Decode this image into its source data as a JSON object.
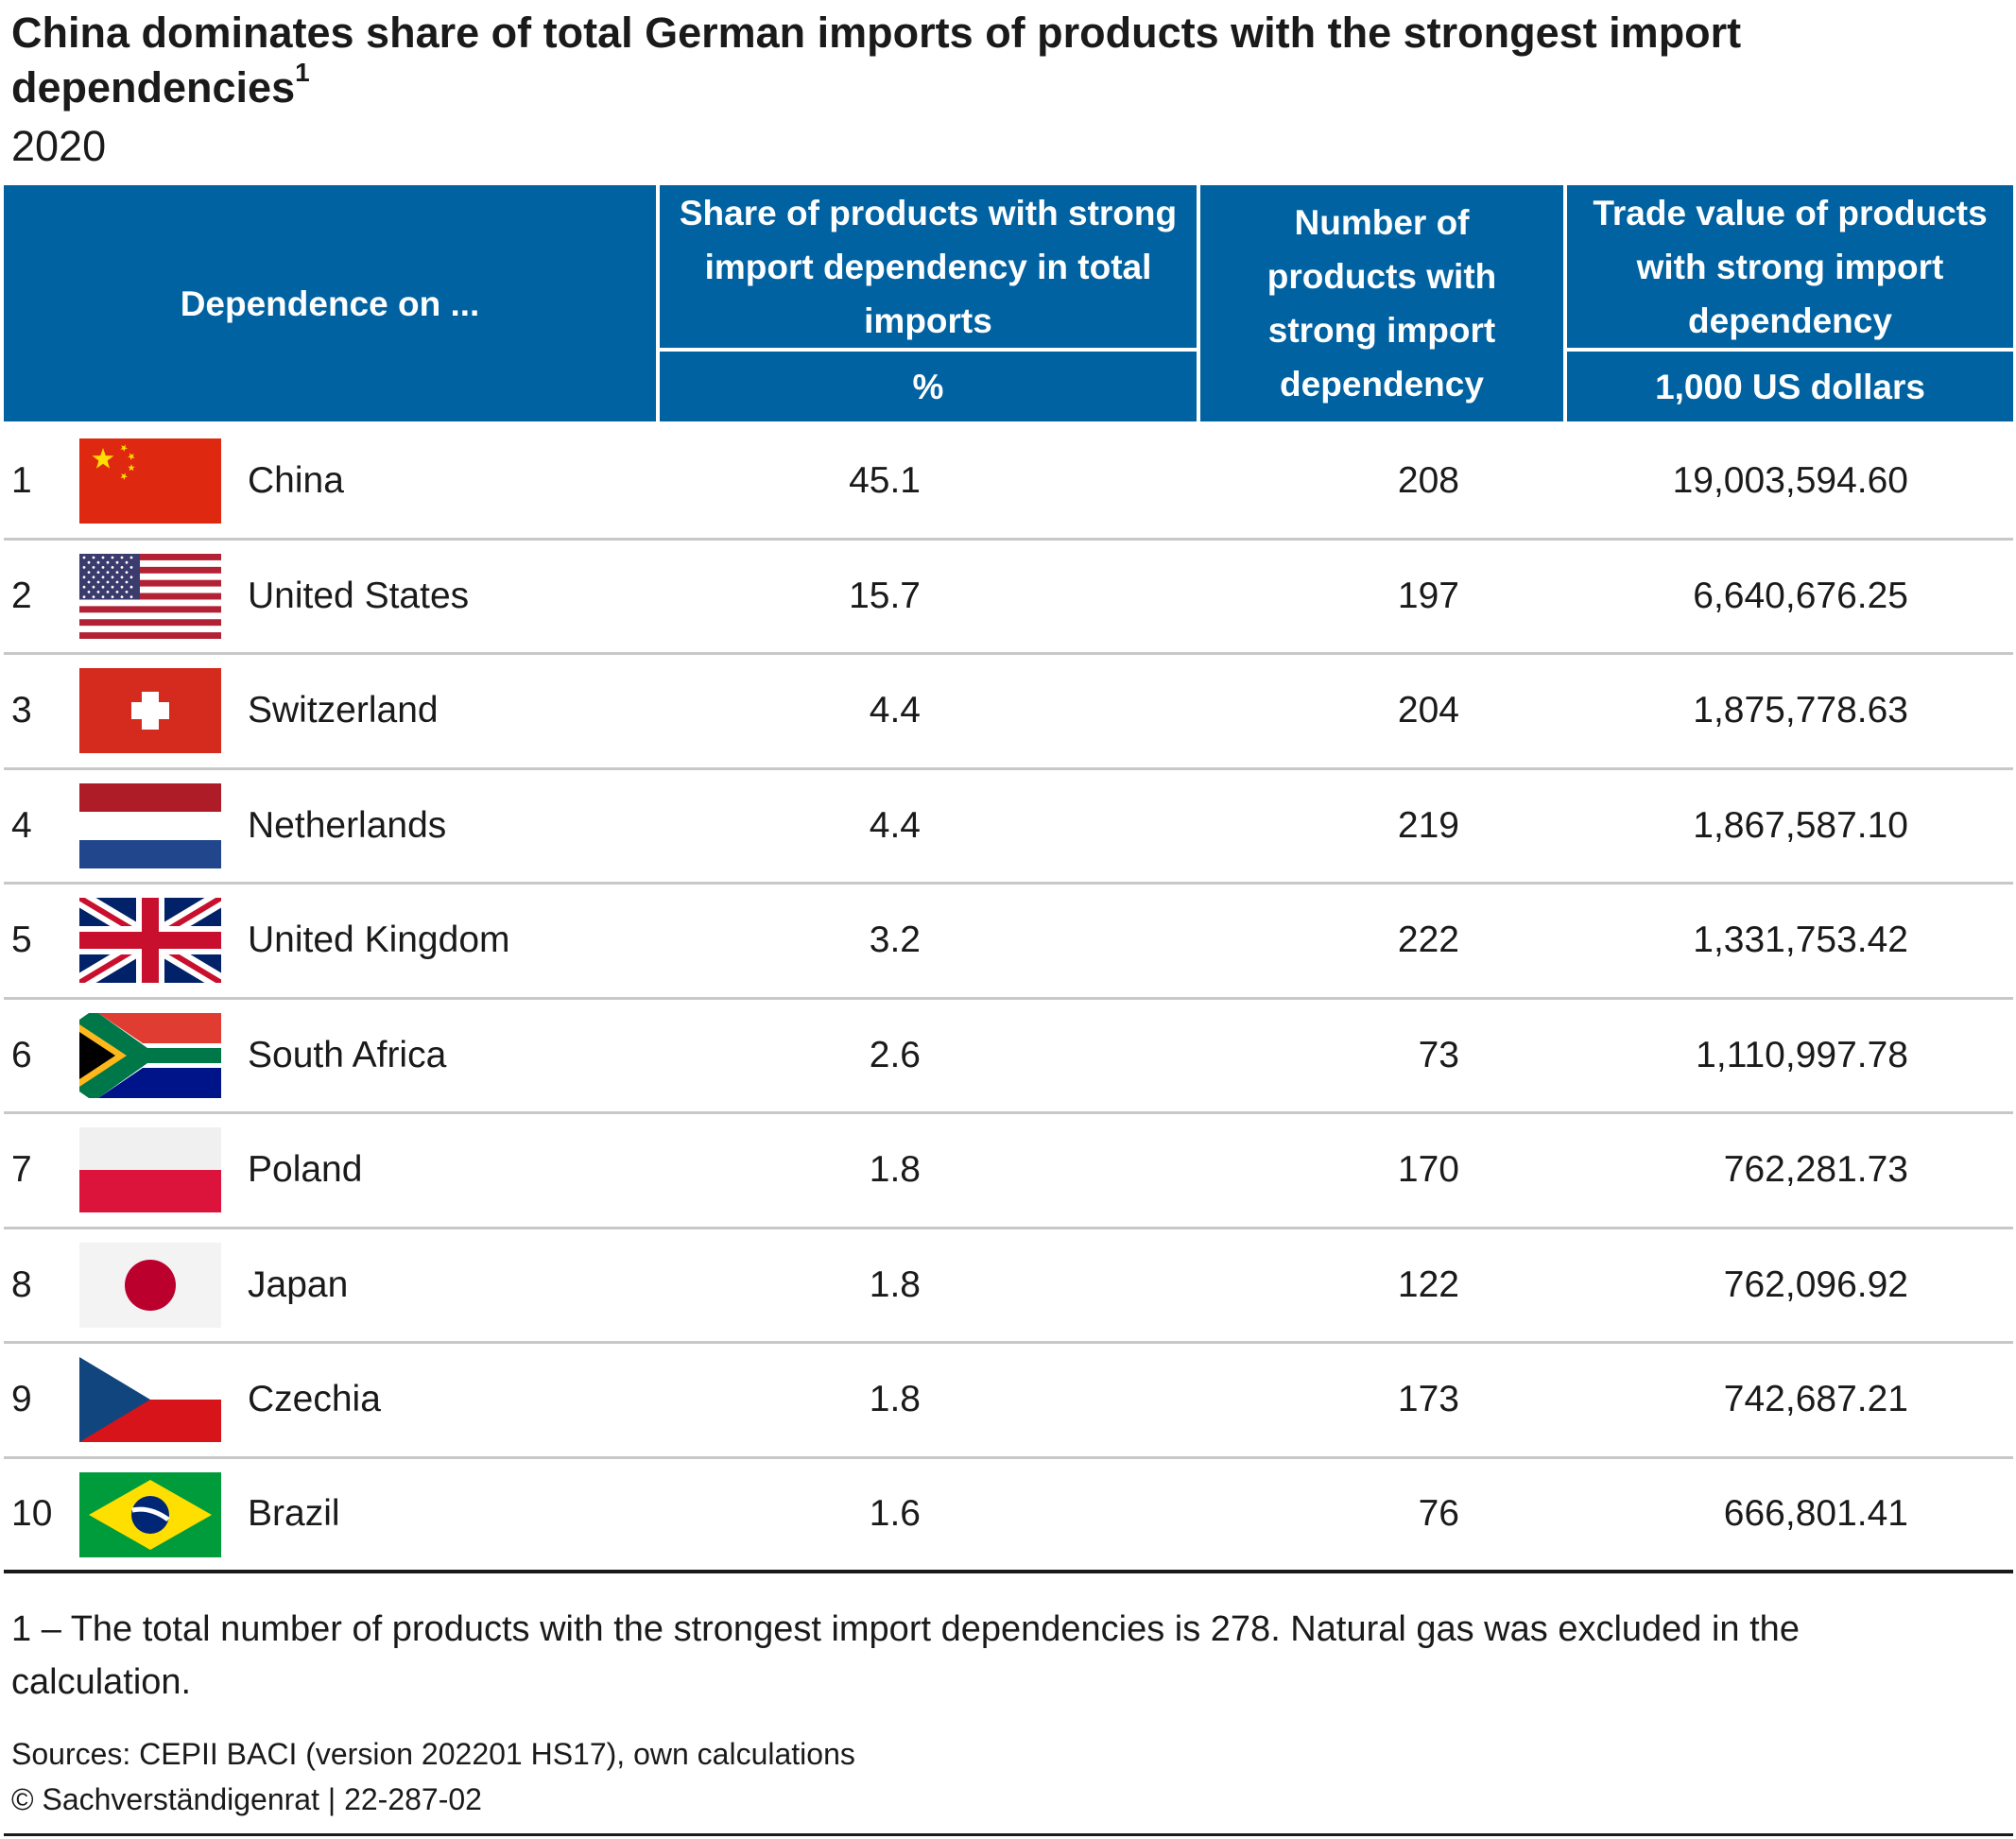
{
  "title": "China dominates share of total German imports of products with the strongest import dependencies",
  "title_footnote_marker": "1",
  "subtitle": "2020",
  "header": {
    "col_dependence": "Dependence on ...",
    "col_share": "Share of products with strong import dependency in total imports",
    "col_share_unit": "%",
    "col_number": "Number of products with strong import dependency",
    "col_trade": "Trade value of products with strong import dependency",
    "col_trade_unit": "1,000 US dollars"
  },
  "colors": {
    "header_bg": "#0062a1",
    "header_text": "#ffffff",
    "row_divider": "#c8c8c8"
  },
  "rows": [
    {
      "rank": "1",
      "flag_icon": "china-flag-icon",
      "country": "China",
      "share": "45.1",
      "number": "208",
      "trade_value": "19,003,594.60"
    },
    {
      "rank": "2",
      "flag_icon": "united-states-flag-icon",
      "country": "United States",
      "share": "15.7",
      "number": "197",
      "trade_value": "6,640,676.25"
    },
    {
      "rank": "3",
      "flag_icon": "switzerland-flag-icon",
      "country": "Switzerland",
      "share": "4.4",
      "number": "204",
      "trade_value": "1,875,778.63"
    },
    {
      "rank": "4",
      "flag_icon": "netherlands-flag-icon",
      "country": "Netherlands",
      "share": "4.4",
      "number": "219",
      "trade_value": "1,867,587.10"
    },
    {
      "rank": "5",
      "flag_icon": "united-kingdom-flag-icon",
      "country": "United Kingdom",
      "share": "3.2",
      "number": "222",
      "trade_value": "1,331,753.42"
    },
    {
      "rank": "6",
      "flag_icon": "south-africa-flag-icon",
      "country": "South Africa",
      "share": "2.6",
      "number": "73",
      "trade_value": "1,110,997.78"
    },
    {
      "rank": "7",
      "flag_icon": "poland-flag-icon",
      "country": "Poland",
      "share": "1.8",
      "number": "170",
      "trade_value": "762,281.73"
    },
    {
      "rank": "8",
      "flag_icon": "japan-flag-icon",
      "country": "Japan",
      "share": "1.8",
      "number": "122",
      "trade_value": "762,096.92"
    },
    {
      "rank": "9",
      "flag_icon": "czechia-flag-icon",
      "country": "Czechia",
      "share": "1.8",
      "number": "173",
      "trade_value": "742,687.21"
    },
    {
      "rank": "10",
      "flag_icon": "brazil-flag-icon",
      "country": "Brazil",
      "share": "1.6",
      "number": "76",
      "trade_value": "666,801.41"
    }
  ],
  "footnote": "1 – The total number of products with the strongest import dependencies is 278. Natural gas was excluded in the calculation.",
  "source": "Sources: CEPII BACI (version 202201 HS17), own calculations",
  "copyright": "© Sachverständigenrat | 22-287-02",
  "chart_data": {
    "type": "table",
    "title": "China dominates share of total German imports of products with the strongest import dependencies",
    "subtitle": "2020",
    "columns": [
      "Dependence on ...",
      "Share of products with strong import dependency in total imports (%)",
      "Number of products with strong import dependency",
      "Trade value of products with strong import dependency (1,000 US dollars)"
    ],
    "categories": [
      "China",
      "United States",
      "Switzerland",
      "Netherlands",
      "United Kingdom",
      "South Africa",
      "Poland",
      "Japan",
      "Czechia",
      "Brazil"
    ],
    "series": [
      {
        "name": "Share of products with strong import dependency in total imports",
        "values": [
          45.1,
          15.7,
          4.4,
          4.4,
          3.2,
          2.6,
          1.8,
          1.8,
          1.8,
          1.6
        ]
      },
      {
        "name": "Number of products with strong import dependency",
        "values": [
          208,
          197,
          204,
          219,
          222,
          73,
          170,
          122,
          173,
          76
        ]
      },
      {
        "name": "Trade value of products with strong import dependency",
        "values": [
          19003594.6,
          6640676.25,
          1875778.63,
          1867587.1,
          1331753.42,
          1110997.78,
          762281.73,
          762096.92,
          742687.21,
          666801.41
        ]
      }
    ]
  }
}
